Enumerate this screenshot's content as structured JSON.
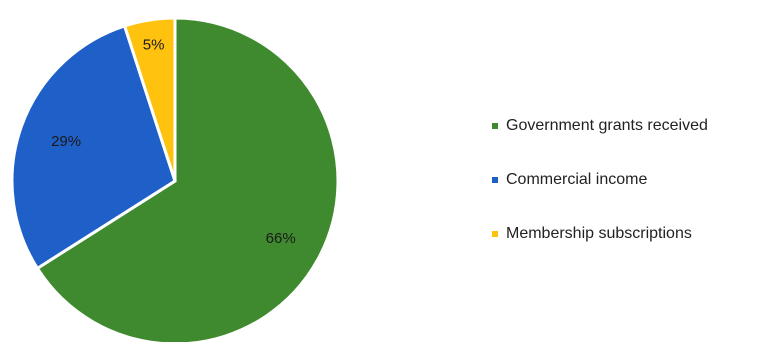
{
  "chart_data": {
    "type": "pie",
    "categories": [
      "Government grants received",
      "Commercial income",
      "Membership subscriptions"
    ],
    "values": [
      66,
      29,
      5
    ],
    "value_labels": [
      "66%",
      "29%",
      "5%"
    ],
    "colors": [
      "#3f8a2e",
      "#1f5fc8",
      "#ffc20e"
    ],
    "label_colors": [
      "#1a1a1a",
      "#1a1a1a",
      "#1a1a1a"
    ],
    "title": "",
    "legend_position": "right"
  }
}
